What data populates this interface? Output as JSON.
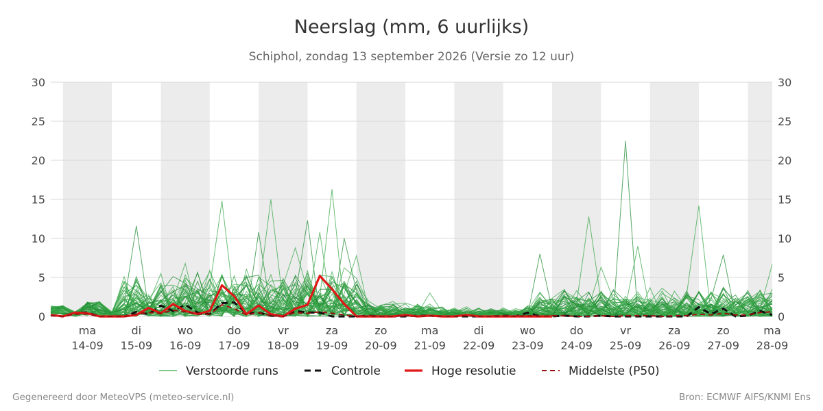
{
  "header": {
    "title": "Neerslag (mm, 6 uurlijks)",
    "subtitle": "Schiphol, zondag 13 september 2026 (Versie zo 12 uur)"
  },
  "footer": {
    "left": "Gegenereerd door MeteoVPS (meteo-service.nl)",
    "right": "Bron: ECMWF AIFS/KNMI Ens"
  },
  "colors": {
    "ensemble": "#3aa84a",
    "ensemble_dark": "#1f8a32",
    "control": "#111111",
    "high_res": "#e01818",
    "p50": "#9b1010",
    "weekend_band": "#ececec",
    "grid": "#d9d9d9"
  },
  "chart_data": {
    "type": "line",
    "ylim": [
      0,
      30
    ],
    "y_ticks": [
      0,
      5,
      10,
      15,
      20,
      25,
      30
    ],
    "xlim": [
      -0.25,
      14.5
    ],
    "x_day_labels": [
      {
        "day": "ma",
        "date": "14-09"
      },
      {
        "day": "di",
        "date": "15-09"
      },
      {
        "day": "wo",
        "date": "16-09"
      },
      {
        "day": "do",
        "date": "17-09"
      },
      {
        "day": "vr",
        "date": "18-09"
      },
      {
        "day": "za",
        "date": "19-09"
      },
      {
        "day": "zo",
        "date": "20-09"
      },
      {
        "day": "ma",
        "date": "21-09"
      },
      {
        "day": "di",
        "date": "22-09"
      },
      {
        "day": "wo",
        "date": "23-09"
      },
      {
        "day": "do",
        "date": "24-09"
      },
      {
        "day": "vr",
        "date": "25-09"
      },
      {
        "day": "za",
        "date": "26-09"
      },
      {
        "day": "zo",
        "date": "27-09"
      },
      {
        "day": "ma",
        "date": "28-09"
      }
    ],
    "shaded_days": [
      0,
      2,
      4,
      6,
      8,
      10,
      12,
      14
    ],
    "grid": true,
    "legend_position": "bottom",
    "legend": [
      "Verstoorde runs",
      "Controle",
      "Hoge resolutie",
      "Middelste (P50)"
    ],
    "series": [
      {
        "name": "Controle",
        "style": "dashed",
        "x": [
          -0.25,
          0,
          0.25,
          0.5,
          0.75,
          1,
          1.25,
          1.5,
          1.75,
          2,
          2.25,
          2.5,
          2.75,
          3,
          3.25,
          3.5,
          3.75,
          4,
          4.25,
          4.5,
          4.75,
          5,
          5.25,
          5.5,
          5.75,
          6,
          6.25,
          6.5,
          6.75,
          7,
          7.25,
          7.5,
          7.75,
          8,
          8.25,
          8.5,
          8.75,
          9,
          9.25,
          9.5,
          9.75,
          10,
          10.25,
          10.5,
          10.75,
          11,
          11.25,
          11.5,
          11.75,
          12,
          12.25,
          12.5,
          12.75,
          13,
          13.25,
          13.5,
          13.75,
          14,
          14.25,
          14.5
        ],
        "y": [
          0.2,
          0,
          0.5,
          0.5,
          0,
          0,
          0,
          0.6,
          0.3,
          1.4,
          0.7,
          1.5,
          0.5,
          0.3,
          1.7,
          1.8,
          0.4,
          0.5,
          0.1,
          0,
          0.7,
          0.5,
          0.5,
          0,
          0,
          0,
          0.1,
          0,
          0,
          0,
          0.1,
          0.1,
          0,
          0,
          0,
          0,
          0,
          0.1,
          0,
          0.5,
          0,
          0,
          0.1,
          0,
          0,
          0.1,
          0,
          0,
          0,
          0,
          0,
          0,
          0,
          1.2,
          0.3,
          1.0,
          0,
          0.1,
          0.7,
          0.2
        ]
      },
      {
        "name": "Hoge resolutie",
        "style": "solid",
        "x": [
          -0.25,
          0,
          0.25,
          0.5,
          0.75,
          1,
          1.25,
          1.5,
          1.75,
          2,
          2.25,
          2.5,
          2.75,
          3,
          3.25,
          3.5,
          3.75,
          4,
          4.25,
          4.5,
          4.75,
          5,
          5.25,
          5.5,
          5.75,
          6,
          6.25,
          6.5,
          6.75,
          7,
          7.25,
          7.5,
          7.75,
          8,
          8.25,
          8.5,
          8.75,
          9,
          9.25,
          9.5,
          9.75,
          10
        ],
        "y": [
          0.2,
          0,
          0.5,
          0.4,
          0,
          0,
          0,
          0.2,
          1.1,
          0.4,
          1.6,
          0.7,
          0.3,
          0.7,
          4.0,
          2.6,
          0.3,
          1.4,
          0.3,
          0,
          1.0,
          1.5,
          5.2,
          3.5,
          1.6,
          0,
          0,
          0,
          0,
          0.2,
          0,
          0.1,
          0,
          0,
          0.2,
          0,
          0,
          0,
          0,
          0,
          0,
          0
        ]
      },
      {
        "name": "Middelste (P50)",
        "style": "dashed",
        "x": [
          -0.25,
          0,
          0.25,
          0.5,
          0.75,
          1,
          1.25,
          1.5,
          1.75,
          2,
          2.25,
          2.5,
          2.75,
          3,
          3.25,
          3.5,
          3.75,
          4,
          4.25,
          4.5,
          4.75,
          5,
          5.25,
          5.5,
          5.75,
          6,
          6.25,
          6.5,
          6.75,
          7,
          7.25,
          7.5,
          7.75,
          8,
          8.25,
          8.5,
          8.75,
          9,
          9.25,
          9.5,
          9.75,
          10,
          10.25,
          10.5,
          10.75,
          11,
          11.25,
          11.5,
          11.75,
          12,
          12.25,
          12.5,
          12.75,
          13,
          13.25,
          13.5,
          13.75,
          14,
          14.25,
          14.5
        ],
        "y": [
          0.1,
          0,
          0.3,
          0.3,
          0,
          0,
          0,
          0.3,
          0.5,
          0.4,
          0.8,
          0.6,
          0.3,
          0.3,
          1.5,
          1.0,
          0.2,
          0.5,
          0.1,
          0,
          0.5,
          0.4,
          0.6,
          0.4,
          0.2,
          0,
          0,
          0,
          0,
          0.1,
          0,
          0.1,
          0,
          0,
          0.1,
          0,
          0,
          0,
          0,
          0.1,
          0,
          0.1,
          0.1,
          0,
          0,
          0.1,
          0,
          0.1,
          0.1,
          0.1,
          0,
          0.1,
          0.1,
          0.3,
          0.2,
          0.4,
          0.2,
          0.2,
          0.5,
          0.6
        ]
      }
    ]
  }
}
